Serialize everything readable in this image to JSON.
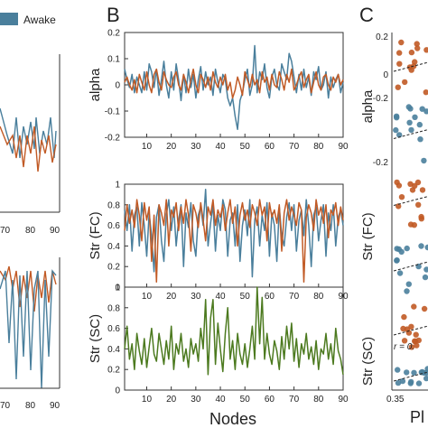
{
  "colors": {
    "awake": "#4a7f9c",
    "sleep": "#c15a25",
    "sc": "#4c7a1f",
    "grid": "#bbbbbb",
    "axis": "#333333"
  },
  "panel_labels": [
    "B",
    "C"
  ],
  "legend": {
    "awake_label": "Awake"
  },
  "x_axis_label": "Nodes",
  "c_axis_tick": "0.35",
  "c_axis_label_fragment": "Pl",
  "c_annotation": "r = 0.",
  "chart_data": [
    {
      "id": "alpha",
      "type": "line",
      "ylabel": "alpha",
      "xlim": [
        1,
        90
      ],
      "ylim": [
        -0.2,
        0.2
      ],
      "yticks": [
        "-0.2",
        "-0.1",
        "0",
        "0.1",
        "0.2"
      ],
      "xticks": [
        "10",
        "20",
        "30",
        "40",
        "50",
        "60",
        "70",
        "80",
        "90"
      ],
      "series": [
        {
          "color_key": "awake",
          "values": [
            0.06,
            0.02,
            -0.01,
            0.04,
            -0.03,
            0.03,
            0.0,
            -0.03,
            0.05,
            -0.02,
            0.08,
            0.05,
            -0.01,
            0.06,
            -0.04,
            0.02,
            0.09,
            0.0,
            -0.05,
            0.05,
            -0.02,
            0.08,
            0.02,
            -0.06,
            0.04,
            -0.03,
            0.06,
            -0.01,
            0.04,
            -0.05,
            0.02,
            0.07,
            -0.02,
            0.05,
            0.0,
            0.03,
            -0.04,
            0.06,
            0.01,
            -0.03,
            0.04,
            0.02,
            -0.05,
            -0.08,
            -0.05,
            -0.12,
            -0.17,
            -0.06,
            -0.03,
            0.02,
            0.06,
            -0.04,
            0.0,
            0.15,
            -0.03,
            0.05,
            0.02,
            0.08,
            -0.01,
            -0.05,
            0.03,
            0.06,
            0.0,
            -0.02,
            0.08,
            0.05,
            0.02,
            0.12,
            0.09,
            0.03,
            -0.03,
            0.04,
            -0.02,
            0.06,
            -0.01,
            0.03,
            -0.04,
            0.05,
            0.02,
            0.07,
            -0.02,
            0.0,
            0.05,
            -0.05,
            0.03,
            -0.01,
            0.02,
            0.04,
            -0.03,
            0.01
          ]
        },
        {
          "color_key": "sleep",
          "values": [
            0.01,
            0.03,
            0.0,
            -0.02,
            0.02,
            -0.03,
            0.04,
            0.01,
            -0.02,
            0.05,
            0.0,
            -0.03,
            0.04,
            0.06,
            0.01,
            -0.02,
            0.05,
            0.02,
            0.0,
            -0.01,
            0.03,
            0.05,
            0.0,
            -0.02,
            0.04,
            0.01,
            -0.03,
            0.02,
            0.06,
            0.0,
            -0.03,
            0.04,
            0.02,
            -0.01,
            0.03,
            -0.02,
            0.05,
            0.01,
            -0.01,
            0.03,
            0.0,
            0.04,
            -0.02,
            0.01,
            -0.05,
            -0.02,
            0.03,
            0.0,
            -0.04,
            0.05,
            0.02,
            -0.01,
            0.04,
            0.0,
            0.02,
            -0.03,
            0.05,
            0.01,
            0.03,
            -0.02,
            0.04,
            0.0,
            -0.01,
            0.05,
            0.02,
            -0.02,
            0.04,
            0.01,
            0.06,
            -0.02,
            0.0,
            0.03,
            0.05,
            -0.01,
            0.02,
            0.04,
            -0.03,
            0.01,
            0.05,
            0.0,
            -0.02,
            0.03,
            0.04,
            0.0,
            -0.02,
            0.03,
            0.01,
            0.04,
            0.0,
            0.02
          ]
        }
      ]
    },
    {
      "id": "str_fc",
      "type": "line",
      "ylabel": "Str (FC)",
      "xlim": [
        1,
        90
      ],
      "ylim": [
        0,
        1
      ],
      "yticks": [
        "0",
        "0.2",
        "0.4",
        "0.6",
        "0.8",
        "1"
      ],
      "xticks": [
        "10",
        "20",
        "30",
        "40",
        "50",
        "60",
        "70",
        "80",
        "90"
      ],
      "series": [
        {
          "color_key": "awake",
          "values": [
            0.75,
            0.55,
            0.8,
            0.35,
            0.7,
            0.78,
            0.4,
            0.82,
            0.6,
            0.3,
            0.72,
            0.5,
            0.15,
            0.68,
            0.8,
            0.45,
            0.25,
            0.7,
            0.85,
            0.55,
            0.78,
            0.4,
            0.65,
            0.8,
            0.2,
            0.72,
            0.58,
            0.82,
            0.45,
            0.3,
            0.7,
            0.78,
            0.6,
            0.95,
            0.4,
            0.62,
            0.8,
            0.35,
            0.7,
            0.55,
            0.85,
            0.75,
            0.3,
            0.65,
            0.72,
            0.4,
            0.8,
            0.25,
            0.6,
            0.75,
            0.5,
            0.85,
            0.1,
            0.65,
            0.78,
            0.4,
            0.7,
            0.55,
            0.82,
            0.3,
            0.72,
            0.6,
            0.25,
            0.78,
            0.5,
            0.4,
            0.68,
            0.82,
            0.55,
            0.8,
            0.35,
            0.65,
            0.75,
            0.5,
            0.85,
            0.6,
            0.2,
            0.7,
            0.78,
            0.45,
            0.65,
            0.8,
            0.3,
            0.72,
            0.55,
            0.8,
            0.4,
            0.68,
            0.75,
            0.6
          ]
        },
        {
          "color_key": "sleep",
          "values": [
            0.55,
            0.8,
            0.62,
            0.75,
            0.58,
            0.85,
            0.7,
            0.45,
            0.82,
            0.65,
            0.78,
            0.25,
            0.7,
            0.05,
            0.8,
            0.72,
            0.6,
            0.85,
            0.4,
            0.75,
            0.68,
            0.82,
            0.55,
            0.78,
            0.62,
            0.85,
            0.7,
            0.35,
            0.8,
            0.72,
            0.58,
            0.82,
            0.65,
            0.45,
            0.78,
            0.7,
            0.85,
            0.6,
            0.75,
            0.68,
            0.8,
            0.55,
            0.72,
            0.85,
            0.62,
            0.78,
            0.4,
            0.7,
            0.82,
            0.65,
            0.75,
            0.58,
            0.8,
            0.72,
            0.6,
            0.85,
            0.7,
            0.78,
            0.45,
            0.82,
            0.68,
            0.75,
            0.62,
            0.8,
            0.35,
            0.72,
            0.85,
            0.65,
            0.78,
            0.7,
            0.6,
            0.82,
            0.75,
            0.05,
            0.68,
            0.8,
            0.72,
            0.55,
            0.85,
            0.7,
            0.78,
            0.62,
            0.8,
            0.48,
            0.75,
            0.7,
            0.82,
            0.6,
            0.78,
            0.65
          ]
        }
      ]
    },
    {
      "id": "str_sc",
      "type": "line",
      "ylabel": "Str (SC)",
      "xlim": [
        1,
        90
      ],
      "ylim": [
        0,
        1
      ],
      "yticks": [
        "0",
        "0.2",
        "0.4",
        "0.6",
        "0.8",
        "1"
      ],
      "xticks": [
        "10",
        "20",
        "30",
        "40",
        "50",
        "60",
        "70",
        "80",
        "90"
      ],
      "series": [
        {
          "color_key": "sc",
          "values": [
            0.4,
            0.62,
            0.3,
            0.45,
            0.2,
            0.55,
            0.38,
            0.25,
            0.5,
            0.22,
            0.42,
            0.6,
            0.35,
            0.28,
            0.55,
            0.4,
            0.25,
            0.48,
            0.3,
            0.62,
            0.2,
            0.45,
            0.35,
            0.55,
            0.28,
            0.4,
            0.22,
            0.5,
            0.35,
            0.45,
            0.28,
            0.6,
            0.4,
            0.88,
            0.15,
            0.7,
            0.88,
            0.25,
            0.65,
            0.4,
            0.18,
            0.55,
            0.8,
            0.3,
            0.48,
            0.2,
            0.55,
            0.35,
            0.25,
            0.45,
            0.22,
            0.4,
            0.62,
            0.3,
            1.0,
            0.45,
            0.9,
            0.3,
            0.55,
            0.35,
            0.25,
            0.48,
            0.38,
            0.2,
            0.52,
            0.3,
            0.62,
            0.4,
            0.65,
            0.28,
            0.5,
            0.22,
            0.45,
            0.35,
            0.55,
            0.3,
            0.42,
            0.25,
            0.48,
            0.2,
            0.4,
            0.35,
            0.55,
            0.3,
            0.45,
            0.25,
            0.6,
            0.38,
            0.3,
            0.15
          ]
        }
      ]
    }
  ],
  "left_partial": {
    "xticks": [
      "70",
      "80",
      "90"
    ]
  }
}
